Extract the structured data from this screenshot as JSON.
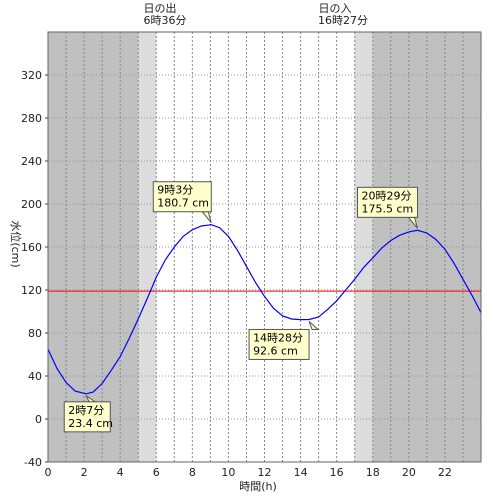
{
  "chart_data": {
    "type": "line",
    "xlabel": "時間(h)",
    "ylabel": "水位(cm)",
    "xlim": [
      0,
      24
    ],
    "ylim": [
      -40,
      360
    ],
    "x_ticks": [
      0,
      2,
      4,
      6,
      8,
      10,
      12,
      14,
      16,
      18,
      20,
      22
    ],
    "y_ticks": [
      -40,
      0,
      40,
      80,
      120,
      160,
      200,
      240,
      280,
      320
    ],
    "grid": true,
    "sunrise": {
      "label": "日の出",
      "time": "6時36分",
      "hour": 6.6
    },
    "sunset": {
      "label": "日の入",
      "time": "16時27分",
      "hour": 16.45
    },
    "twilight_bands": [
      [
        5.0,
        6.0
      ],
      [
        17.0,
        18.0
      ]
    ],
    "reference_line": {
      "value": 119,
      "color": "#ff0000"
    },
    "series": [
      {
        "color": "#0000ff",
        "points": [
          [
            0.0,
            65
          ],
          [
            0.5,
            47
          ],
          [
            1.0,
            34
          ],
          [
            1.5,
            26
          ],
          [
            2.12,
            23.4
          ],
          [
            2.5,
            25
          ],
          [
            3.0,
            33
          ],
          [
            3.5,
            45
          ],
          [
            4.0,
            58
          ],
          [
            4.5,
            75
          ],
          [
            5.0,
            93
          ],
          [
            5.5,
            112
          ],
          [
            6.0,
            132
          ],
          [
            6.5,
            148
          ],
          [
            7.0,
            160
          ],
          [
            7.5,
            170
          ],
          [
            8.0,
            176
          ],
          [
            8.5,
            179.5
          ],
          [
            9.05,
            180.7
          ],
          [
            9.5,
            178
          ],
          [
            10.0,
            170
          ],
          [
            10.5,
            157
          ],
          [
            11.0,
            142
          ],
          [
            11.5,
            127
          ],
          [
            12.0,
            114
          ],
          [
            12.5,
            103
          ],
          [
            13.0,
            96
          ],
          [
            13.5,
            93
          ],
          [
            14.0,
            92.5
          ],
          [
            14.47,
            92.6
          ],
          [
            15.0,
            95
          ],
          [
            15.5,
            102
          ],
          [
            16.0,
            110
          ],
          [
            16.5,
            120
          ],
          [
            17.0,
            130
          ],
          [
            17.5,
            141
          ],
          [
            18.0,
            150
          ],
          [
            18.5,
            159
          ],
          [
            19.0,
            166
          ],
          [
            19.5,
            171
          ],
          [
            20.0,
            174
          ],
          [
            20.48,
            175.5
          ],
          [
            21.0,
            173
          ],
          [
            21.5,
            167
          ],
          [
            22.0,
            158
          ],
          [
            22.5,
            145
          ],
          [
            23.0,
            130
          ],
          [
            23.5,
            115
          ],
          [
            24.0,
            99
          ]
        ]
      }
    ],
    "annotations": [
      {
        "time": "2時7分",
        "value": "23.4 cm",
        "x": 2.12,
        "y": 23.4
      },
      {
        "time": "9時3分",
        "value": "180.7 cm",
        "x": 9.05,
        "y": 180.7
      },
      {
        "time": "14時28分",
        "value": "92.6 cm",
        "x": 14.47,
        "y": 92.6
      },
      {
        "time": "20時29分",
        "value": "175.5 cm",
        "x": 20.48,
        "y": 175.5
      }
    ]
  },
  "colors": {
    "night": "#c0c0c0",
    "twilight": "#dcdcdc",
    "day": "#ffffff",
    "curve": "#0000ff",
    "reference": "#ff0000",
    "annotation_bg": "#ffffcc"
  }
}
